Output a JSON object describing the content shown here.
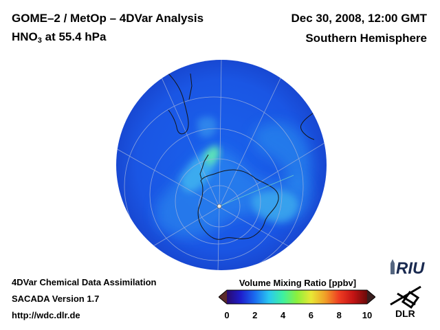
{
  "header": {
    "title_line1": "GOME–2 / MetOp – 4DVar Analysis",
    "species_prefix": "HNO",
    "species_subscript": "3",
    "species_suffix": " at 55.4 hPa",
    "date": "Dec 30, 2008, 12:00 GMT",
    "region": "Southern Hemisphere"
  },
  "footer": {
    "line1": "4DVar Chemical Data Assimilation",
    "line2": "SACADA Version 1.7",
    "line3": "http://wdc.dlr.de"
  },
  "colorbar": {
    "title": "Volume Mixing Ratio [ppbv]",
    "ticks": [
      "0",
      "2",
      "4",
      "6",
      "8",
      "10"
    ],
    "range": [
      0,
      10
    ],
    "colors": [
      "#2a0a6e",
      "#1e1ecc",
      "#1a6cf0",
      "#2ac8f0",
      "#3ef0a0",
      "#8cf03c",
      "#e8e836",
      "#f0a028",
      "#ee3c22",
      "#c41414",
      "#6a0a0a"
    ],
    "under_color": "#5a2a2a",
    "over_color": "#3a1e1e"
  },
  "logos": {
    "riu": "RIU",
    "dlr": "DLR"
  },
  "map": {
    "background_color": "#1a58e6",
    "coast_color": "#141414",
    "grid_color": "#9fb2dc"
  }
}
